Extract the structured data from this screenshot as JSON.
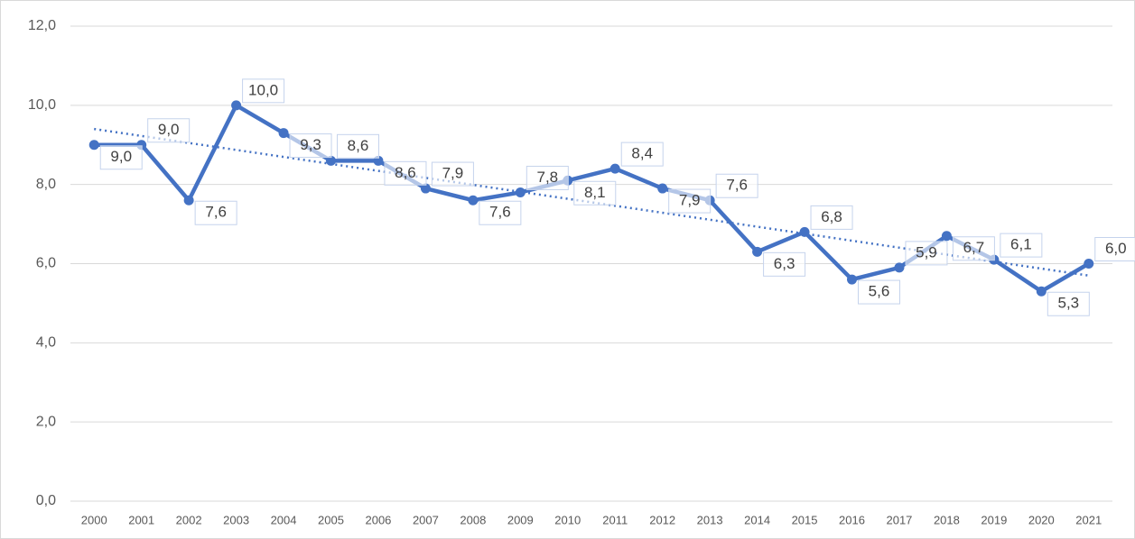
{
  "chart_data": {
    "type": "line",
    "categories": [
      "2000",
      "2001",
      "2002",
      "2003",
      "2004",
      "2005",
      "2006",
      "2007",
      "2008",
      "2009",
      "2010",
      "2011",
      "2012",
      "2013",
      "2014",
      "2015",
      "2016",
      "2017",
      "2018",
      "2019",
      "2020",
      "2021"
    ],
    "values": [
      9.0,
      9.0,
      7.6,
      10.0,
      9.3,
      8.6,
      8.6,
      7.9,
      7.6,
      7.8,
      8.1,
      8.4,
      7.9,
      7.6,
      6.3,
      6.8,
      5.6,
      5.9,
      6.7,
      6.1,
      5.3,
      6.0
    ],
    "value_labels": [
      "9,0",
      "9,0",
      "7,6",
      "10,0",
      "9,3",
      "8,6",
      "8,6",
      "7,9",
      "7,6",
      "7,8",
      "8,1",
      "8,4",
      "7,9",
      "7,6",
      "6,3",
      "6,8",
      "5,6",
      "5,9",
      "6,7",
      "6,1",
      "5,3",
      "6,0"
    ],
    "color": "#4472c4",
    "ylim": [
      0,
      12
    ],
    "yticks": [
      {
        "value": 0,
        "label": "0,0"
      },
      {
        "value": 2,
        "label": "2,0"
      },
      {
        "value": 4,
        "label": "4,0"
      },
      {
        "value": 6,
        "label": "6,0"
      },
      {
        "value": 8,
        "label": "8,0"
      },
      {
        "value": 10,
        "label": "10,0"
      },
      {
        "value": 12,
        "label": "12,0"
      }
    ],
    "grid": true,
    "trendline": true
  }
}
